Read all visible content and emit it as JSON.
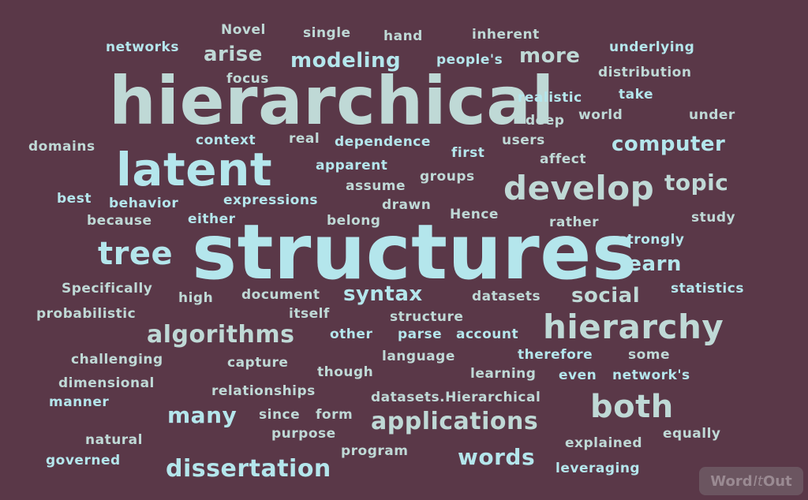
{
  "words": [
    "hierarchical",
    "structures",
    "latent",
    "develop",
    "hierarchy",
    "tree",
    "applications",
    "both",
    "algorithms",
    "dissertation",
    "many",
    "words",
    "modeling",
    "computer",
    "topic",
    "arise",
    "syntax",
    "social",
    "learn",
    "more",
    "Novel",
    "single",
    "hand",
    "inherent",
    "networks",
    "underlying",
    "people's",
    "focus",
    "distribution",
    "realistic",
    "take",
    "deep",
    "world",
    "under",
    "context",
    "real",
    "dependence",
    "users",
    "domains",
    "first",
    "affect",
    "apparent",
    "groups",
    "assume",
    "best",
    "behavior",
    "expressions",
    "drawn",
    "Hence",
    "study",
    "because",
    "either",
    "belong",
    "rather",
    "strongly",
    "Specifically",
    "high",
    "document",
    "datasets",
    "statistics",
    "probabilistic",
    "itself",
    "structure",
    "other",
    "parse",
    "account",
    "therefore",
    "some",
    "challenging",
    "capture",
    "language",
    "though",
    "learning",
    "even",
    "network's",
    "dimensional",
    "relationships",
    "datasets.Hierarchical",
    "manner",
    "since",
    "form",
    "natural",
    "purpose",
    "explained",
    "equally",
    "program",
    "governed",
    "leveraging"
  ],
  "logo": {
    "word": "Word",
    "rest": "It",
    "out": "Out"
  }
}
